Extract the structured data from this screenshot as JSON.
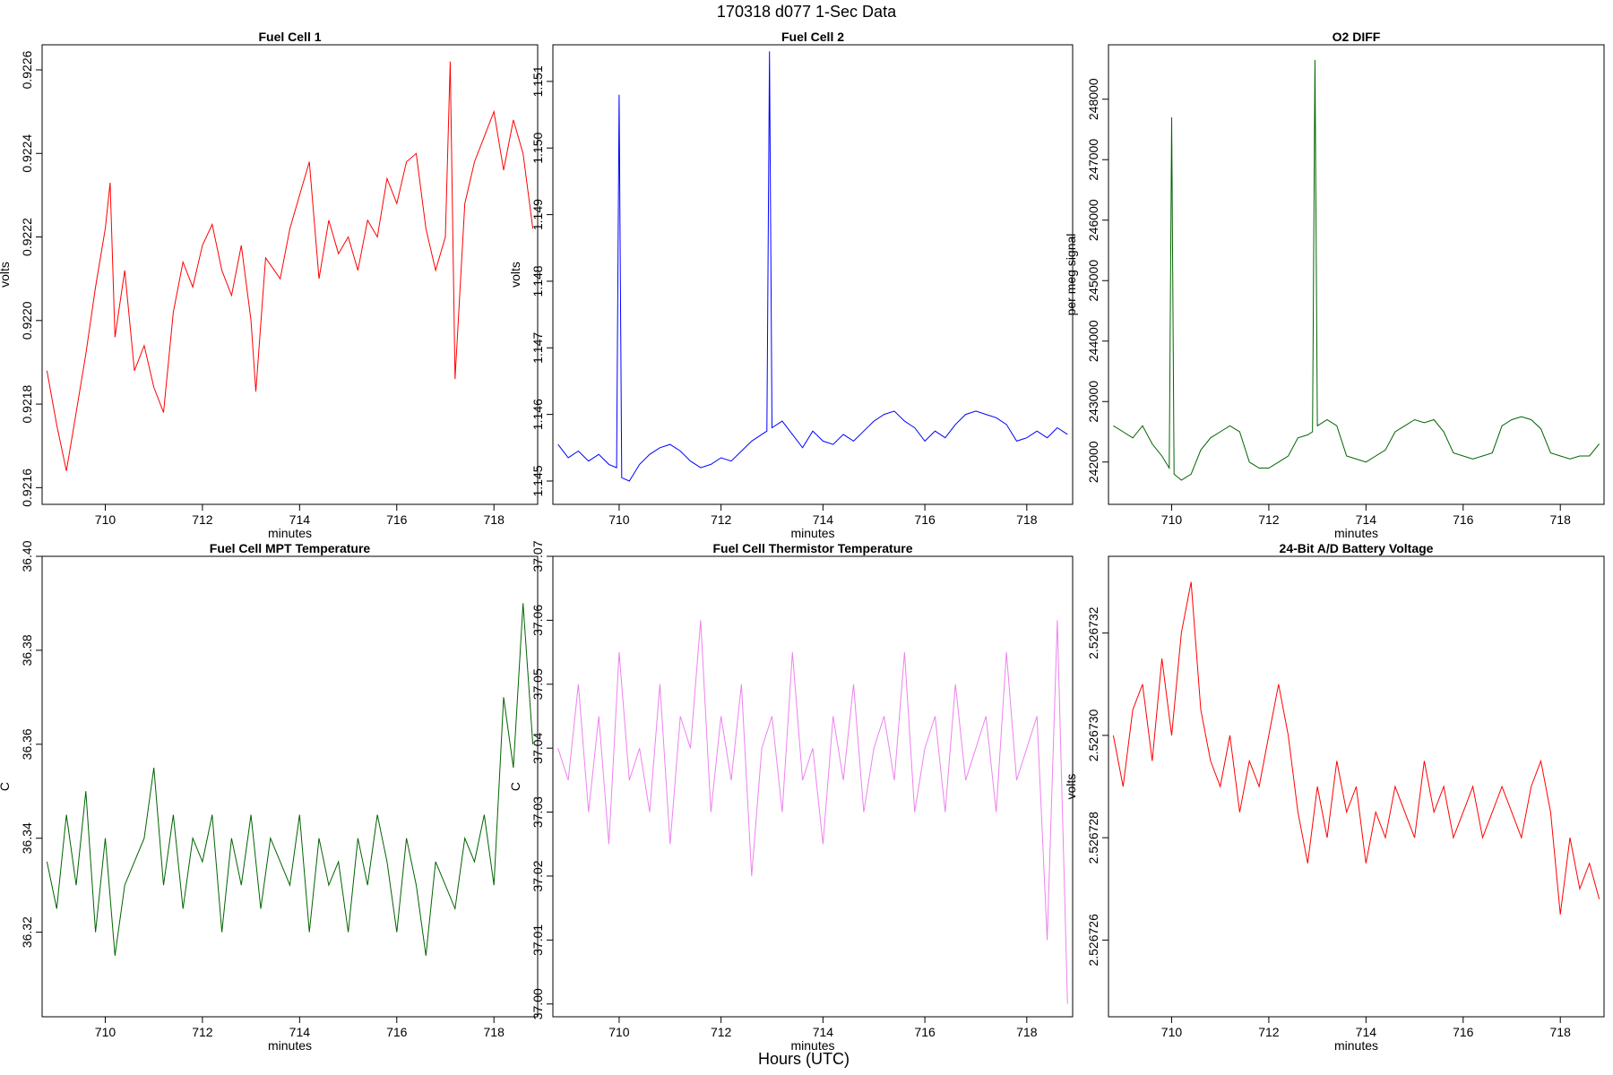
{
  "figure": {
    "title": "170318   d077   1-Sec Data",
    "xlabel_outer": "Hours (UTC)"
  },
  "chart_data": [
    {
      "type": "line",
      "title": "Fuel Cell 1",
      "xlabel": "minutes",
      "ylabel": "volts",
      "color": "#ff0000",
      "xlim": [
        708.7,
        718.9
      ],
      "ylim": [
        0.92156,
        0.92266
      ],
      "xticks": [
        710,
        712,
        714,
        716,
        718
      ],
      "yticks": [
        0.9216,
        0.9218,
        0.922,
        0.9222,
        0.9224,
        0.9226
      ],
      "ytick_labels": [
        "0.9216",
        "0.9218",
        "0.9220",
        "0.9222",
        "0.9224",
        "0.9226"
      ],
      "series": [
        {
          "x": [
            708.8,
            709.0,
            709.2,
            709.4,
            709.6,
            709.8,
            710.0,
            710.1,
            710.2,
            710.4,
            710.6,
            710.8,
            711.0,
            711.2,
            711.4,
            711.6,
            711.8,
            712.0,
            712.2,
            712.4,
            712.6,
            712.8,
            713.0,
            713.1,
            713.3,
            713.6,
            713.8,
            714.0,
            714.2,
            714.4,
            714.6,
            714.8,
            715.0,
            715.2,
            715.4,
            715.6,
            715.8,
            716.0,
            716.2,
            716.4,
            716.6,
            716.8,
            717.0,
            717.1,
            717.2,
            717.4,
            717.6,
            717.8,
            718.0,
            718.2,
            718.4,
            718.6,
            718.8
          ],
          "y": [
            0.92188,
            0.92175,
            0.92164,
            0.92178,
            0.92192,
            0.92208,
            0.92222,
            0.92233,
            0.92196,
            0.92212,
            0.92188,
            0.92194,
            0.92184,
            0.92178,
            0.92202,
            0.92214,
            0.92208,
            0.92218,
            0.92223,
            0.92212,
            0.92206,
            0.92218,
            0.922,
            0.92183,
            0.92215,
            0.9221,
            0.92222,
            0.9223,
            0.92238,
            0.9221,
            0.92224,
            0.92216,
            0.9222,
            0.92212,
            0.92224,
            0.9222,
            0.92234,
            0.92228,
            0.92238,
            0.9224,
            0.92222,
            0.92212,
            0.9222,
            0.92262,
            0.92186,
            0.92228,
            0.92238,
            0.92244,
            0.9225,
            0.92236,
            0.92248,
            0.9224,
            0.92222
          ]
        }
      ]
    },
    {
      "type": "line",
      "title": "Fuel Cell 2",
      "xlabel": "minutes",
      "ylabel": "volts",
      "color": "#0000ff",
      "xlim": [
        708.7,
        718.9
      ],
      "ylim": [
        1.14465,
        1.15155
      ],
      "xticks": [
        710,
        712,
        714,
        716,
        718
      ],
      "yticks": [
        1.145,
        1.146,
        1.147,
        1.148,
        1.149,
        1.15,
        1.151
      ],
      "ytick_labels": [
        "1.145",
        "1.146",
        "1.147",
        "1.148",
        "1.149",
        "1.150",
        "1.151"
      ],
      "series": [
        {
          "x": [
            708.8,
            709.0,
            709.2,
            709.4,
            709.6,
            709.8,
            709.95,
            710.0,
            710.05,
            710.2,
            710.4,
            710.6,
            710.8,
            711.0,
            711.2,
            711.4,
            711.6,
            711.8,
            712.0,
            712.2,
            712.4,
            712.6,
            712.8,
            712.9,
            712.95,
            713.0,
            713.2,
            713.4,
            713.6,
            713.8,
            714.0,
            714.2,
            714.4,
            714.6,
            714.8,
            715.0,
            715.2,
            715.4,
            715.6,
            715.8,
            716.0,
            716.2,
            716.4,
            716.6,
            716.8,
            717.0,
            717.2,
            717.4,
            717.6,
            717.8,
            718.0,
            718.2,
            718.4,
            718.6,
            718.8
          ],
          "y": [
            1.14555,
            1.14535,
            1.14545,
            1.1453,
            1.1454,
            1.14525,
            1.1452,
            1.1508,
            1.14505,
            1.145,
            1.14525,
            1.1454,
            1.1455,
            1.14555,
            1.14545,
            1.1453,
            1.1452,
            1.14525,
            1.14535,
            1.1453,
            1.14545,
            1.1456,
            1.1457,
            1.14575,
            1.15145,
            1.1458,
            1.1459,
            1.1457,
            1.1455,
            1.14575,
            1.1456,
            1.14555,
            1.1457,
            1.1456,
            1.14575,
            1.1459,
            1.146,
            1.14605,
            1.1459,
            1.1458,
            1.1456,
            1.14575,
            1.14565,
            1.14585,
            1.146,
            1.14605,
            1.146,
            1.14595,
            1.14585,
            1.1456,
            1.14565,
            1.14575,
            1.14565,
            1.1458,
            1.1457
          ]
        }
      ]
    },
    {
      "type": "line",
      "title": "O2 DIFF",
      "xlabel": "minutes",
      "ylabel": "per meg signal",
      "color": "#006400",
      "xlim": [
        708.7,
        718.9
      ],
      "ylim": [
        241300,
        248900
      ],
      "xticks": [
        710,
        712,
        714,
        716,
        718
      ],
      "yticks": [
        242000,
        243000,
        244000,
        245000,
        246000,
        247000,
        248000
      ],
      "ytick_labels": [
        "242000",
        "243000",
        "244000",
        "245000",
        "246000",
        "247000",
        "248000"
      ],
      "series": [
        {
          "x": [
            708.8,
            709.0,
            709.2,
            709.4,
            709.6,
            709.8,
            709.95,
            710.0,
            710.05,
            710.2,
            710.4,
            710.6,
            710.8,
            711.0,
            711.2,
            711.4,
            711.6,
            711.8,
            712.0,
            712.2,
            712.4,
            712.6,
            712.8,
            712.9,
            712.95,
            713.0,
            713.2,
            713.4,
            713.6,
            713.8,
            714.0,
            714.2,
            714.4,
            714.6,
            714.8,
            715.0,
            715.2,
            715.4,
            715.6,
            715.8,
            716.0,
            716.2,
            716.4,
            716.6,
            716.8,
            717.0,
            717.2,
            717.4,
            717.6,
            717.8,
            718.0,
            718.2,
            718.4,
            718.6,
            718.8
          ],
          "y": [
            242600,
            242500,
            242400,
            242600,
            242300,
            242100,
            241900,
            247700,
            241800,
            241700,
            241800,
            242200,
            242400,
            242500,
            242600,
            242500,
            242000,
            241900,
            241900,
            242000,
            242100,
            242400,
            242450,
            242500,
            248650,
            242600,
            242700,
            242600,
            242100,
            242050,
            242000,
            242100,
            242200,
            242500,
            242600,
            242700,
            242650,
            242700,
            242500,
            242150,
            242100,
            242050,
            242100,
            242150,
            242600,
            242700,
            242750,
            242700,
            242550,
            242150,
            242100,
            242050,
            242100,
            242100,
            242300
          ]
        }
      ]
    },
    {
      "type": "line",
      "title": "Fuel Cell MPT Temperature",
      "xlabel": "minutes",
      "ylabel": "C",
      "color": "#006400",
      "xlim": [
        708.7,
        718.9
      ],
      "ylim": [
        36.302,
        36.4
      ],
      "xticks": [
        710,
        712,
        714,
        716,
        718
      ],
      "yticks": [
        36.32,
        36.34,
        36.36,
        36.38,
        36.4
      ],
      "ytick_labels": [
        "36.32",
        "36.34",
        "36.36",
        "36.38",
        "36.40"
      ],
      "series": [
        {
          "x": [
            708.8,
            709.0,
            709.2,
            709.4,
            709.6,
            709.8,
            710.0,
            710.2,
            710.4,
            710.6,
            710.8,
            711.0,
            711.2,
            711.4,
            711.6,
            711.8,
            712.0,
            712.2,
            712.4,
            712.6,
            712.8,
            713.0,
            713.2,
            713.4,
            713.6,
            713.8,
            714.0,
            714.2,
            714.4,
            714.6,
            714.8,
            715.0,
            715.2,
            715.4,
            715.6,
            715.8,
            716.0,
            716.2,
            716.4,
            716.6,
            716.8,
            717.0,
            717.2,
            717.4,
            717.6,
            717.8,
            718.0,
            718.2,
            718.4,
            718.6,
            718.8
          ],
          "y": [
            36.335,
            36.325,
            36.345,
            36.33,
            36.35,
            36.32,
            36.34,
            36.315,
            36.33,
            36.335,
            36.34,
            36.355,
            36.33,
            36.345,
            36.325,
            36.34,
            36.335,
            36.345,
            36.32,
            36.34,
            36.33,
            36.345,
            36.325,
            36.34,
            36.335,
            36.33,
            36.345,
            36.32,
            36.34,
            36.33,
            36.335,
            36.32,
            36.34,
            36.33,
            36.345,
            36.335,
            36.32,
            36.34,
            36.33,
            36.315,
            36.335,
            36.33,
            36.325,
            36.34,
            36.335,
            36.345,
            36.33,
            36.37,
            36.355,
            36.39,
            36.36
          ]
        }
      ]
    },
    {
      "type": "line",
      "title": "Fuel Cell Thermistor Temperature",
      "xlabel": "minutes",
      "ylabel": "C",
      "color": "#ee82ee",
      "xlim": [
        708.7,
        718.9
      ],
      "ylim": [
        36.998,
        37.07
      ],
      "xticks": [
        710,
        712,
        714,
        716,
        718
      ],
      "yticks": [
        37.0,
        37.01,
        37.02,
        37.03,
        37.04,
        37.05,
        37.06,
        37.07
      ],
      "ytick_labels": [
        "37.00",
        "37.01",
        "37.02",
        "37.03",
        "37.04",
        "37.05",
        "37.06",
        "37.07"
      ],
      "series": [
        {
          "x": [
            708.8,
            709.0,
            709.2,
            709.4,
            709.6,
            709.8,
            710.0,
            710.2,
            710.4,
            710.6,
            710.8,
            711.0,
            711.2,
            711.4,
            711.6,
            711.8,
            712.0,
            712.2,
            712.4,
            712.6,
            712.8,
            713.0,
            713.2,
            713.4,
            713.6,
            713.8,
            714.0,
            714.2,
            714.4,
            714.6,
            714.8,
            715.0,
            715.2,
            715.4,
            715.6,
            715.8,
            716.0,
            716.2,
            716.4,
            716.6,
            716.8,
            717.0,
            717.2,
            717.4,
            717.6,
            717.8,
            718.0,
            718.2,
            718.4,
            718.6,
            718.8
          ],
          "y": [
            37.04,
            37.035,
            37.05,
            37.03,
            37.045,
            37.025,
            37.055,
            37.035,
            37.04,
            37.03,
            37.05,
            37.025,
            37.045,
            37.04,
            37.06,
            37.03,
            37.045,
            37.035,
            37.05,
            37.02,
            37.04,
            37.045,
            37.03,
            37.055,
            37.035,
            37.04,
            37.025,
            37.045,
            37.035,
            37.05,
            37.03,
            37.04,
            37.045,
            37.035,
            37.055,
            37.03,
            37.04,
            37.045,
            37.03,
            37.05,
            37.035,
            37.04,
            37.045,
            37.03,
            37.055,
            37.035,
            37.04,
            37.045,
            37.01,
            37.06,
            37.0
          ]
        }
      ]
    },
    {
      "type": "line",
      "title": "24-Bit A/D Battery Voltage",
      "xlabel": "minutes",
      "ylabel": "volts",
      "color": "#ff0000",
      "xlim": [
        708.7,
        718.9
      ],
      "ylim": [
        2.5267245,
        2.5267335
      ],
      "xticks": [
        710,
        712,
        714,
        716,
        718
      ],
      "yticks": [
        2.526726,
        2.526728,
        2.52673,
        2.526732
      ],
      "ytick_labels": [
        "2.526726",
        "2.526728",
        "2.526730",
        "2.526732"
      ],
      "series": [
        {
          "x": [
            708.8,
            709.0,
            709.2,
            709.4,
            709.6,
            709.8,
            710.0,
            710.2,
            710.4,
            710.6,
            710.8,
            711.0,
            711.2,
            711.4,
            711.6,
            711.8,
            712.0,
            712.2,
            712.4,
            712.6,
            712.8,
            713.0,
            713.2,
            713.4,
            713.6,
            713.8,
            714.0,
            714.2,
            714.4,
            714.6,
            714.8,
            715.0,
            715.2,
            715.4,
            715.6,
            715.8,
            716.0,
            716.2,
            716.4,
            716.6,
            716.8,
            717.0,
            717.2,
            717.4,
            717.6,
            717.8,
            718.0,
            718.2,
            718.4,
            718.6,
            718.8
          ],
          "y": [
            2.52673,
            2.526729,
            2.5267305,
            2.526731,
            2.5267295,
            2.5267315,
            2.52673,
            2.526732,
            2.526733,
            2.5267305,
            2.5267295,
            2.526729,
            2.52673,
            2.5267285,
            2.5267295,
            2.526729,
            2.52673,
            2.526731,
            2.52673,
            2.5267285,
            2.5267275,
            2.526729,
            2.526728,
            2.5267295,
            2.5267285,
            2.526729,
            2.5267275,
            2.5267285,
            2.526728,
            2.526729,
            2.5267285,
            2.526728,
            2.5267295,
            2.5267285,
            2.526729,
            2.526728,
            2.5267285,
            2.526729,
            2.526728,
            2.5267285,
            2.526729,
            2.5267285,
            2.526728,
            2.526729,
            2.5267295,
            2.5267285,
            2.5267265,
            2.526728,
            2.526727,
            2.5267275,
            2.5267268
          ]
        }
      ]
    }
  ]
}
